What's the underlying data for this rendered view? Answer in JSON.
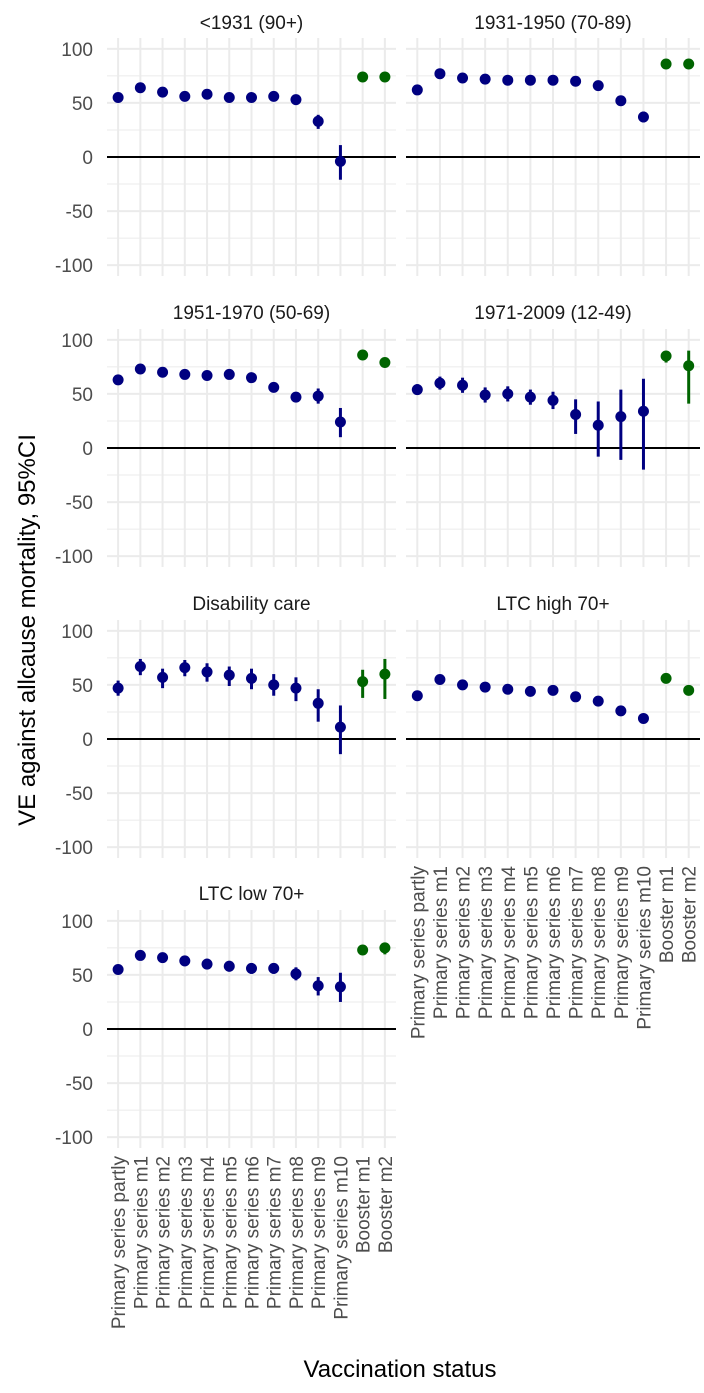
{
  "chart_data": {
    "type": "scatter",
    "ylabel": "VE against allcause mortality, 95%CI",
    "xlabel": "Vaccination status",
    "categories": [
      "Primary series partly",
      "Primary series m1",
      "Primary series m2",
      "Primary series m3",
      "Primary series m4",
      "Primary series m5",
      "Primary series m6",
      "Primary series m7",
      "Primary series m8",
      "Primary series m9",
      "Primary series m10",
      "Booster m1",
      "Booster m2"
    ],
    "ylim": [
      -110,
      110
    ],
    "yticks": [
      -100,
      -50,
      0,
      50,
      100
    ],
    "reference_line": 0,
    "colors": {
      "primary": "#000080",
      "booster": "#006400",
      "grid": "#ebebeb",
      "refline": "#000000"
    },
    "panels": [
      {
        "title": "<1931 (90+)",
        "values": [
          55,
          64,
          60,
          56,
          58,
          55,
          55,
          56,
          53,
          33,
          -4,
          74,
          74
        ],
        "lower": [
          52,
          61,
          57,
          53,
          55,
          52,
          52,
          53,
          48,
          26,
          -21,
          72,
          72
        ],
        "upper": [
          58,
          67,
          63,
          59,
          61,
          58,
          58,
          59,
          57,
          39,
          11,
          76,
          76
        ]
      },
      {
        "title": "1931-1950 (70-89)",
        "values": [
          62,
          77,
          73,
          72,
          71,
          71,
          71,
          70,
          66,
          52,
          37,
          86,
          86
        ],
        "lower": [
          60,
          75,
          71,
          70,
          69,
          69,
          69,
          68,
          64,
          49,
          32,
          85,
          85
        ],
        "upper": [
          64,
          79,
          75,
          74,
          73,
          73,
          73,
          72,
          68,
          55,
          42,
          87,
          87
        ]
      },
      {
        "title": "1951-1970 (50-69)",
        "values": [
          63,
          73,
          70,
          68,
          67,
          68,
          65,
          56,
          47,
          48,
          24,
          86,
          79
        ],
        "lower": [
          60,
          70,
          67,
          65,
          64,
          65,
          62,
          53,
          43,
          41,
          10,
          85,
          77
        ],
        "upper": [
          66,
          76,
          73,
          71,
          70,
          71,
          68,
          59,
          51,
          55,
          37,
          87,
          81
        ]
      },
      {
        "title": "1971-2009 (12-49)",
        "values": [
          54,
          60,
          58,
          49,
          50,
          47,
          44,
          31,
          21,
          29,
          34,
          85,
          76
        ],
        "lower": [
          49,
          54,
          51,
          42,
          43,
          40,
          36,
          13,
          -8,
          -11,
          -20,
          79,
          41
        ],
        "upper": [
          59,
          66,
          65,
          56,
          57,
          54,
          52,
          45,
          43,
          54,
          64,
          89,
          90
        ]
      },
      {
        "title": "Disability care",
        "values": [
          47,
          67,
          57,
          66,
          62,
          59,
          56,
          50,
          47,
          33,
          11,
          53,
          60
        ],
        "lower": [
          40,
          59,
          47,
          58,
          53,
          49,
          46,
          40,
          35,
          16,
          -14,
          38,
          37
        ],
        "upper": [
          54,
          74,
          65,
          73,
          70,
          67,
          65,
          60,
          57,
          46,
          31,
          64,
          74
        ]
      },
      {
        "title": "LTC high 70+",
        "values": [
          40,
          55,
          50,
          48,
          46,
          44,
          45,
          39,
          35,
          26,
          19,
          56,
          45
        ],
        "lower": [
          38,
          53,
          48,
          46,
          44,
          42,
          43,
          37,
          33,
          24,
          15,
          55,
          43
        ],
        "upper": [
          42,
          57,
          52,
          50,
          48,
          46,
          47,
          41,
          37,
          28,
          23,
          57,
          47
        ]
      },
      {
        "title": "LTC low 70+",
        "values": [
          55,
          68,
          66,
          63,
          60,
          58,
          56,
          56,
          51,
          40,
          39,
          73,
          75
        ],
        "lower": [
          52,
          64,
          61,
          58,
          55,
          53,
          51,
          51,
          45,
          31,
          25,
          70,
          69
        ],
        "upper": [
          58,
          72,
          70,
          67,
          65,
          63,
          61,
          61,
          57,
          48,
          52,
          76,
          80
        ]
      }
    ]
  }
}
